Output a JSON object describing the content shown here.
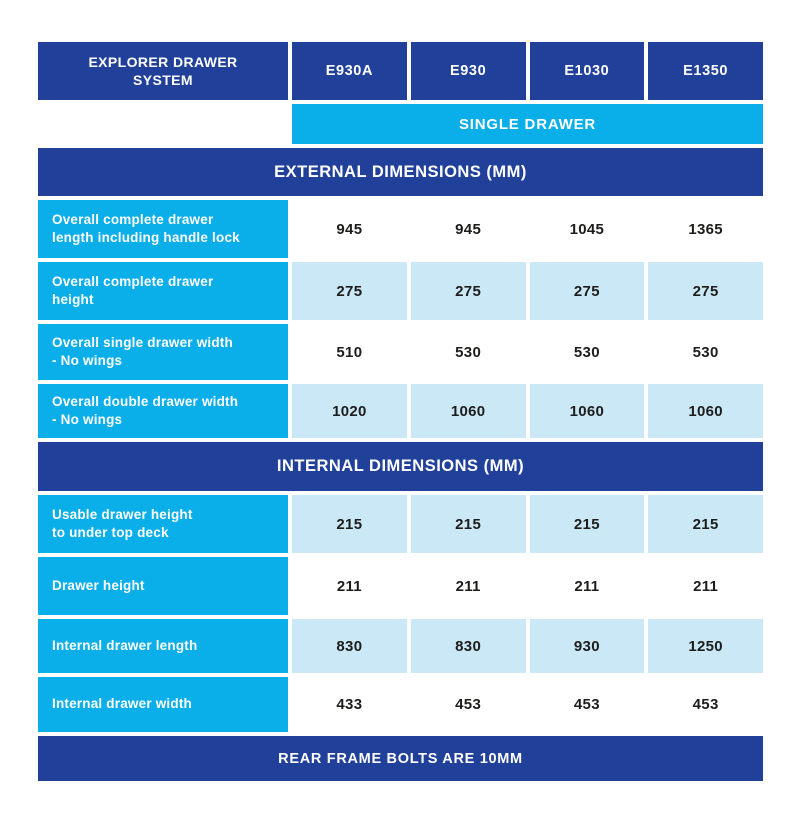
{
  "colors": {
    "navy": "#21409a",
    "cyan": "#0aaee9",
    "light_blue": "#cbe8f7",
    "value_text": "#1d1d1b",
    "background": "#ffffff"
  },
  "table": {
    "corner_label": "EXPLORER DRAWER\nSYSTEM",
    "columns": [
      "E930A",
      "E930",
      "E1030",
      "E1350"
    ],
    "subheader": "SINGLE DRAWER",
    "footer": "REAR FRAME BOLTS ARE 10MM",
    "sections": [
      {
        "title": "EXTERNAL DIMENSIONS (MM)",
        "rows": [
          {
            "label": "Overall complete drawer\nlength including handle lock",
            "values": [
              "945",
              "945",
              "1045",
              "1365"
            ]
          },
          {
            "label": "Overall complete drawer\nheight",
            "values": [
              "275",
              "275",
              "275",
              "275"
            ]
          },
          {
            "label": "Overall single drawer width\n- No wings",
            "values": [
              "510",
              "530",
              "530",
              "530"
            ]
          },
          {
            "label": "Overall double drawer width\n- No wings",
            "values": [
              "1020",
              "1060",
              "1060",
              "1060"
            ]
          }
        ]
      },
      {
        "title": "INTERNAL DIMENSIONS (MM)",
        "rows": [
          {
            "label": "Usable drawer height\nto under top deck",
            "values": [
              "215",
              "215",
              "215",
              "215"
            ]
          },
          {
            "label": "Drawer height",
            "values": [
              "211",
              "211",
              "211",
              "211"
            ]
          },
          {
            "label": "Internal drawer length",
            "values": [
              "830",
              "830",
              "930",
              "1250"
            ]
          },
          {
            "label": "Internal drawer width",
            "values": [
              "433",
              "453",
              "453",
              "453"
            ]
          }
        ]
      }
    ]
  }
}
